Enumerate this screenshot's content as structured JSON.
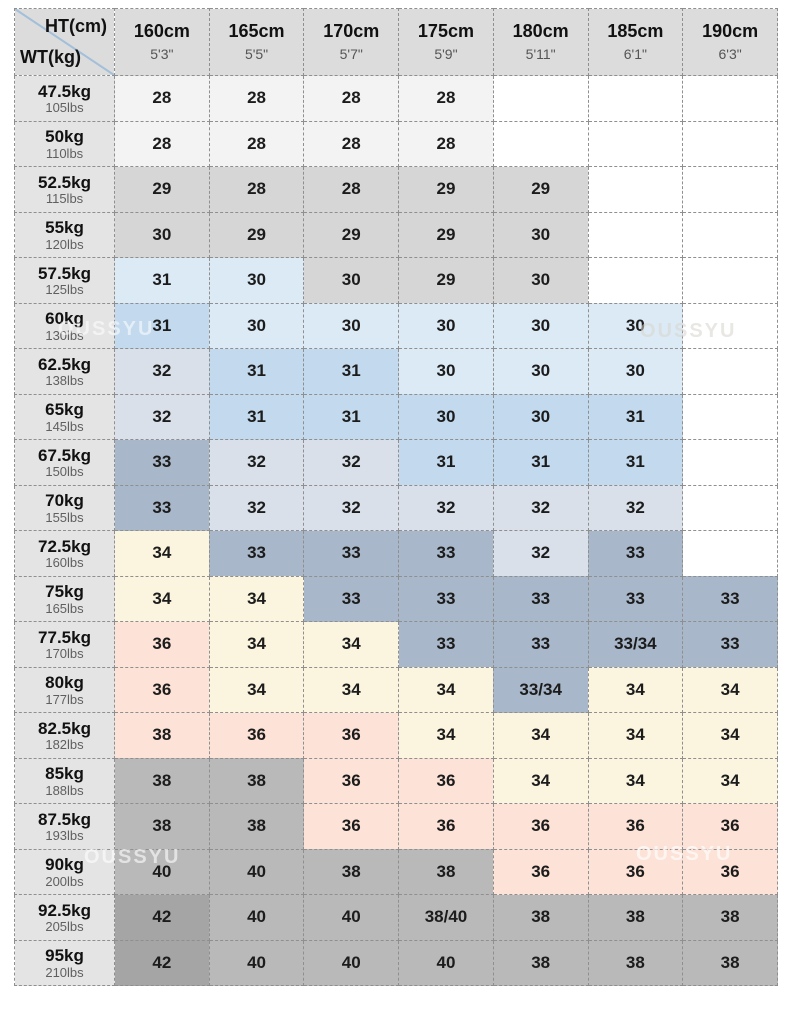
{
  "watermark": {
    "text": "OUSSYU"
  },
  "palette": {
    "empty": "#ffffff",
    "offwhite": "#f3f3f3",
    "gray": "#d6d6d6",
    "light_blue": "#dceaf6",
    "blue": "#c2d9ee",
    "steel_light": "#d9e0ea",
    "steel": "#a8b7c9",
    "cream": "#fbf4de",
    "pink": "#fce2d7",
    "dark_gray": "#b9b9b9",
    "darker_gray": "#a5a5a5",
    "header_bg": "#dcdcdc",
    "label_bg": "#e4e4e4",
    "border": "#8f8f8f",
    "diagonal": "#a3bfd9"
  },
  "chart_data": {
    "type": "table",
    "corner_top": "HT(cm)",
    "corner_bottom": "WT(kg)",
    "columns": [
      [
        "160cm",
        "5'3\""
      ],
      [
        "165cm",
        "5'5\""
      ],
      [
        "170cm",
        "5'7\""
      ],
      [
        "175cm",
        "5'9\""
      ],
      [
        "180cm",
        "5'11\""
      ],
      [
        "185cm",
        "6'1\""
      ],
      [
        "190cm",
        "6'3\""
      ]
    ],
    "rows": [
      {
        "kg": "47.5kg",
        "lbs": "105lbs",
        "cells": [
          [
            "28",
            "offwhite"
          ],
          [
            "28",
            "offwhite"
          ],
          [
            "28",
            "offwhite"
          ],
          [
            "28",
            "offwhite"
          ],
          [
            "",
            "empty"
          ],
          [
            "",
            "empty"
          ],
          [
            "",
            "empty"
          ]
        ]
      },
      {
        "kg": "50kg",
        "lbs": "110lbs",
        "cells": [
          [
            "28",
            "offwhite"
          ],
          [
            "28",
            "offwhite"
          ],
          [
            "28",
            "offwhite"
          ],
          [
            "28",
            "offwhite"
          ],
          [
            "",
            "empty"
          ],
          [
            "",
            "empty"
          ],
          [
            "",
            "empty"
          ]
        ]
      },
      {
        "kg": "52.5kg",
        "lbs": "115lbs",
        "cells": [
          [
            "29",
            "gray"
          ],
          [
            "28",
            "gray"
          ],
          [
            "28",
            "gray"
          ],
          [
            "29",
            "gray"
          ],
          [
            "29",
            "gray"
          ],
          [
            "",
            "empty"
          ],
          [
            "",
            "empty"
          ]
        ]
      },
      {
        "kg": "55kg",
        "lbs": "120lbs",
        "cells": [
          [
            "30",
            "gray"
          ],
          [
            "29",
            "gray"
          ],
          [
            "29",
            "gray"
          ],
          [
            "29",
            "gray"
          ],
          [
            "30",
            "gray"
          ],
          [
            "",
            "empty"
          ],
          [
            "",
            "empty"
          ]
        ]
      },
      {
        "kg": "57.5kg",
        "lbs": "125lbs",
        "cells": [
          [
            "31",
            "light_blue"
          ],
          [
            "30",
            "light_blue"
          ],
          [
            "30",
            "gray"
          ],
          [
            "29",
            "gray"
          ],
          [
            "30",
            "gray"
          ],
          [
            "",
            "empty"
          ],
          [
            "",
            "empty"
          ]
        ]
      },
      {
        "kg": "60kg",
        "lbs": "130lbs",
        "cells": [
          [
            "31",
            "blue"
          ],
          [
            "30",
            "light_blue"
          ],
          [
            "30",
            "light_blue"
          ],
          [
            "30",
            "light_blue"
          ],
          [
            "30",
            "light_blue"
          ],
          [
            "30",
            "light_blue"
          ],
          [
            "",
            "empty"
          ]
        ]
      },
      {
        "kg": "62.5kg",
        "lbs": "138lbs",
        "cells": [
          [
            "32",
            "steel_light"
          ],
          [
            "31",
            "blue"
          ],
          [
            "31",
            "blue"
          ],
          [
            "30",
            "light_blue"
          ],
          [
            "30",
            "light_blue"
          ],
          [
            "30",
            "light_blue"
          ],
          [
            "",
            "empty"
          ]
        ]
      },
      {
        "kg": "65kg",
        "lbs": "145lbs",
        "cells": [
          [
            "32",
            "steel_light"
          ],
          [
            "31",
            "blue"
          ],
          [
            "31",
            "blue"
          ],
          [
            "30",
            "blue"
          ],
          [
            "30",
            "blue"
          ],
          [
            "31",
            "blue"
          ],
          [
            "",
            "empty"
          ]
        ]
      },
      {
        "kg": "67.5kg",
        "lbs": "150lbs",
        "cells": [
          [
            "33",
            "steel"
          ],
          [
            "32",
            "steel_light"
          ],
          [
            "32",
            "steel_light"
          ],
          [
            "31",
            "blue"
          ],
          [
            "31",
            "blue"
          ],
          [
            "31",
            "blue"
          ],
          [
            "",
            "empty"
          ]
        ]
      },
      {
        "kg": "70kg",
        "lbs": "155lbs",
        "cells": [
          [
            "33",
            "steel"
          ],
          [
            "32",
            "steel_light"
          ],
          [
            "32",
            "steel_light"
          ],
          [
            "32",
            "steel_light"
          ],
          [
            "32",
            "steel_light"
          ],
          [
            "32",
            "steel_light"
          ],
          [
            "",
            "empty"
          ]
        ]
      },
      {
        "kg": "72.5kg",
        "lbs": "160lbs",
        "cells": [
          [
            "34",
            "cream"
          ],
          [
            "33",
            "steel"
          ],
          [
            "33",
            "steel"
          ],
          [
            "33",
            "steel"
          ],
          [
            "32",
            "steel_light"
          ],
          [
            "33",
            "steel"
          ],
          [
            "",
            "empty"
          ]
        ]
      },
      {
        "kg": "75kg",
        "lbs": "165lbs",
        "cells": [
          [
            "34",
            "cream"
          ],
          [
            "34",
            "cream"
          ],
          [
            "33",
            "steel"
          ],
          [
            "33",
            "steel"
          ],
          [
            "33",
            "steel"
          ],
          [
            "33",
            "steel"
          ],
          [
            "33",
            "steel"
          ]
        ]
      },
      {
        "kg": "77.5kg",
        "lbs": "170lbs",
        "cells": [
          [
            "36",
            "pink"
          ],
          [
            "34",
            "cream"
          ],
          [
            "34",
            "cream"
          ],
          [
            "33",
            "steel"
          ],
          [
            "33",
            "steel"
          ],
          [
            "33/34",
            "steel"
          ],
          [
            "33",
            "steel"
          ]
        ]
      },
      {
        "kg": "80kg",
        "lbs": "177lbs",
        "cells": [
          [
            "36",
            "pink"
          ],
          [
            "34",
            "cream"
          ],
          [
            "34",
            "cream"
          ],
          [
            "34",
            "cream"
          ],
          [
            "33/34",
            "steel"
          ],
          [
            "34",
            "cream"
          ],
          [
            "34",
            "cream"
          ]
        ]
      },
      {
        "kg": "82.5kg",
        "lbs": "182lbs",
        "cells": [
          [
            "38",
            "pink"
          ],
          [
            "36",
            "pink"
          ],
          [
            "36",
            "pink"
          ],
          [
            "34",
            "cream"
          ],
          [
            "34",
            "cream"
          ],
          [
            "34",
            "cream"
          ],
          [
            "34",
            "cream"
          ]
        ]
      },
      {
        "kg": "85kg",
        "lbs": "188lbs",
        "cells": [
          [
            "38",
            "dark_gray"
          ],
          [
            "38",
            "dark_gray"
          ],
          [
            "36",
            "pink"
          ],
          [
            "36",
            "pink"
          ],
          [
            "34",
            "cream"
          ],
          [
            "34",
            "cream"
          ],
          [
            "34",
            "cream"
          ]
        ]
      },
      {
        "kg": "87.5kg",
        "lbs": "193lbs",
        "cells": [
          [
            "38",
            "dark_gray"
          ],
          [
            "38",
            "dark_gray"
          ],
          [
            "36",
            "pink"
          ],
          [
            "36",
            "pink"
          ],
          [
            "36",
            "pink"
          ],
          [
            "36",
            "pink"
          ],
          [
            "36",
            "pink"
          ]
        ]
      },
      {
        "kg": "90kg",
        "lbs": "200lbs",
        "cells": [
          [
            "40",
            "dark_gray"
          ],
          [
            "40",
            "dark_gray"
          ],
          [
            "38",
            "dark_gray"
          ],
          [
            "38",
            "dark_gray"
          ],
          [
            "36",
            "pink"
          ],
          [
            "36",
            "pink"
          ],
          [
            "36",
            "pink"
          ]
        ]
      },
      {
        "kg": "92.5kg",
        "lbs": "205lbs",
        "cells": [
          [
            "42",
            "darker_gray"
          ],
          [
            "40",
            "dark_gray"
          ],
          [
            "40",
            "dark_gray"
          ],
          [
            "38/40",
            "dark_gray"
          ],
          [
            "38",
            "dark_gray"
          ],
          [
            "38",
            "dark_gray"
          ],
          [
            "38",
            "dark_gray"
          ]
        ]
      },
      {
        "kg": "95kg",
        "lbs": "210lbs",
        "cells": [
          [
            "42",
            "darker_gray"
          ],
          [
            "40",
            "dark_gray"
          ],
          [
            "40",
            "dark_gray"
          ],
          [
            "40",
            "dark_gray"
          ],
          [
            "38",
            "dark_gray"
          ],
          [
            "38",
            "dark_gray"
          ],
          [
            "38",
            "dark_gray"
          ]
        ]
      }
    ]
  }
}
